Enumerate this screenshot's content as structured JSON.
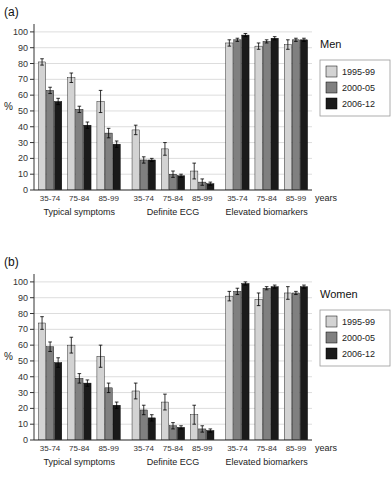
{
  "chart_data": [
    {
      "type": "bar",
      "title": "Men",
      "annotations": [
        "(a)"
      ],
      "xlabel": "years",
      "ylabel": "%",
      "categories": [
        "35-74",
        "75-84",
        "85-99",
        "35-74",
        "75-84",
        "85-99",
        "35-74",
        "75-84",
        "85-99"
      ],
      "category_groups": [
        "Typical symptoms",
        "Definite ECG",
        "Elevated biomarkers"
      ],
      "series": [
        {
          "name": "1995-99",
          "color": "#d3d3d3",
          "values": [
            81,
            71,
            56,
            38,
            26,
            12,
            93,
            91,
            92
          ],
          "errors": [
            2,
            3,
            7,
            3,
            4,
            5,
            2,
            2,
            3
          ]
        },
        {
          "name": "2000-05",
          "color": "#808080",
          "values": [
            63,
            51,
            36,
            19,
            10,
            5,
            95,
            94,
            95
          ],
          "errors": [
            2,
            2,
            3,
            2,
            2,
            2,
            1,
            1,
            1
          ]
        },
        {
          "name": "2006-12",
          "color": "#1a1a1a",
          "values": [
            56,
            41,
            29,
            19,
            9,
            4,
            98,
            96,
            95
          ],
          "errors": [
            2,
            2,
            2,
            1,
            1,
            1,
            1,
            1,
            1
          ]
        }
      ],
      "ylim": [
        0,
        105
      ],
      "yticks": [
        0,
        10,
        20,
        30,
        40,
        50,
        60,
        70,
        80,
        90,
        100
      ],
      "grid": true,
      "legend": "right"
    },
    {
      "type": "bar",
      "title": "Women",
      "annotations": [
        "(b)"
      ],
      "xlabel": "years",
      "ylabel": "%",
      "categories": [
        "35-74",
        "75-84",
        "85-99",
        "35-74",
        "75-84",
        "85-99",
        "35-74",
        "75-84",
        "85-99"
      ],
      "category_groups": [
        "Typical symptoms",
        "Definite ECG",
        "Elevated biomarkers"
      ],
      "series": [
        {
          "name": "1995-99",
          "color": "#d3d3d3",
          "values": [
            74,
            60,
            53,
            31,
            24,
            16,
            91,
            89,
            93
          ],
          "errors": [
            4,
            5,
            7,
            5,
            5,
            6,
            3,
            4,
            4
          ]
        },
        {
          "name": "2000-05",
          "color": "#808080",
          "values": [
            59,
            39,
            33,
            19,
            9,
            7,
            94,
            96,
            93
          ],
          "errors": [
            3,
            3,
            3,
            3,
            2,
            2,
            2,
            1,
            1
          ]
        },
        {
          "name": "2006-12",
          "color": "#1a1a1a",
          "values": [
            49,
            36,
            22,
            14,
            8,
            6,
            99,
            97,
            97
          ],
          "errors": [
            3,
            2,
            2,
            2,
            1,
            1,
            1,
            1,
            1
          ]
        }
      ],
      "ylim": [
        0,
        105
      ],
      "yticks": [
        0,
        10,
        20,
        30,
        40,
        50,
        60,
        70,
        80,
        90,
        100
      ],
      "grid": true,
      "legend": "right"
    }
  ]
}
